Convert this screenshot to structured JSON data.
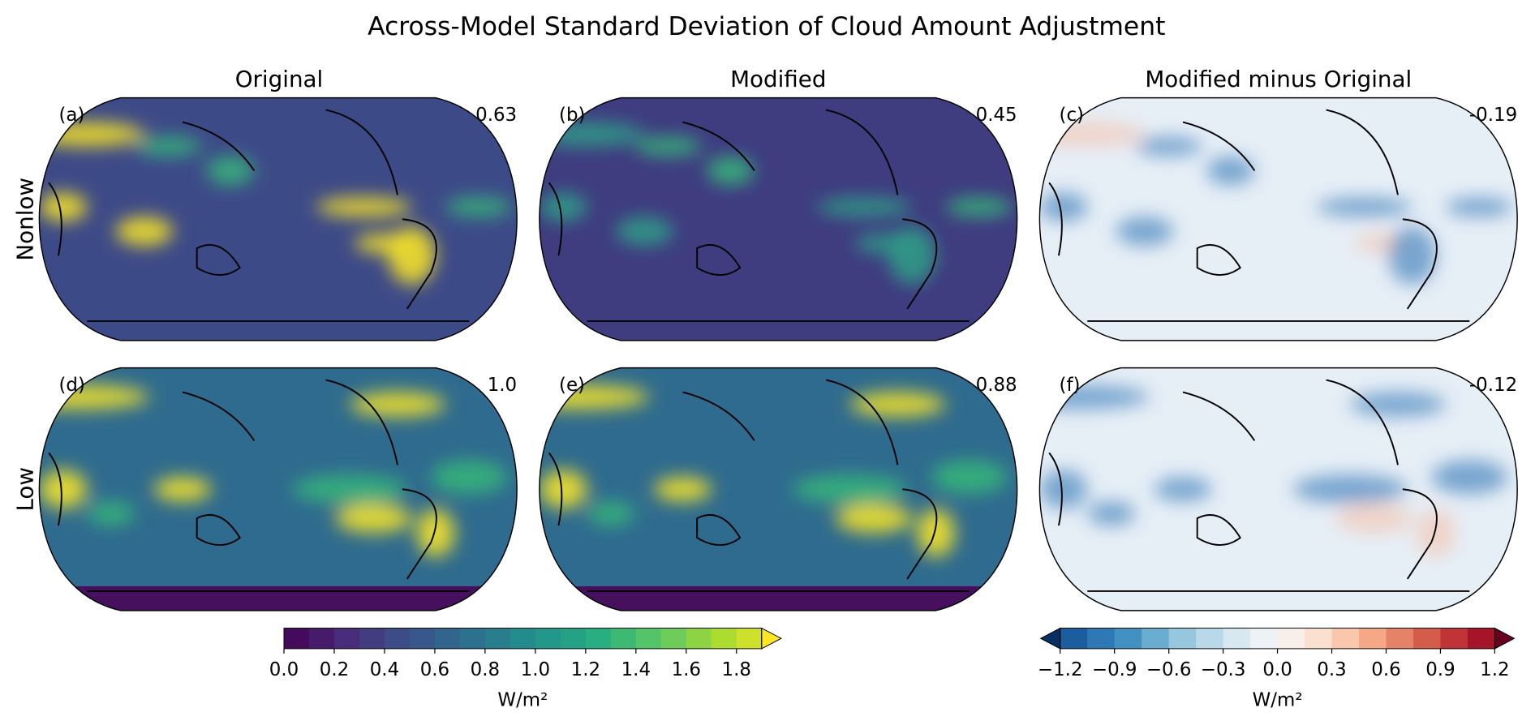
{
  "title": "Across-Model Standard Deviation of Cloud Amount Adjustment",
  "columns": [
    "Original",
    "Modified",
    "Modified minus Original"
  ],
  "rows": [
    "Nonlow",
    "Low"
  ],
  "panels": [
    {
      "label": "(a)",
      "value": "0.63"
    },
    {
      "label": "(b)",
      "value": "0.45"
    },
    {
      "label": "(c)",
      "value": "-0.19"
    },
    {
      "label": "(d)",
      "value": "1.0"
    },
    {
      "label": "(e)",
      "value": "0.88"
    },
    {
      "label": "(f)",
      "value": "-0.12"
    }
  ],
  "colorbars": [
    {
      "colormap": "viridis",
      "lim": [
        0,
        1.9
      ],
      "step": 0.1,
      "extend": "max",
      "ticks": [
        {
          "value": 0,
          "label": "0.0"
        },
        0.2,
        0.4,
        0.6,
        0.8,
        {
          "value": 1,
          "label": "1.0"
        },
        1.2,
        1.4,
        1.6,
        1.8
      ],
      "unit": "W/m²"
    },
    {
      "colormap": "RdBu_r",
      "lim": [
        -1.2,
        1.2
      ],
      "step": 0.15,
      "extend": "both",
      "ticks": [
        {
          "value": -1.2,
          "label": "−1.2"
        },
        {
          "value": -0.9,
          "label": "−0.9"
        },
        {
          "value": -0.6,
          "label": "−0.6"
        },
        {
          "value": -0.3,
          "label": "−0.3"
        },
        {
          "value": 0,
          "label": "0.0"
        },
        0.3,
        0.6,
        0.9,
        1.2
      ],
      "unit": "W/m²"
    }
  ]
}
